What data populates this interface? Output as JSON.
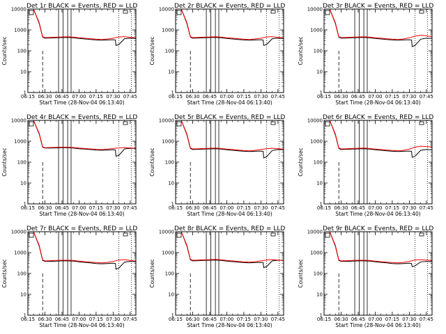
{
  "chart_data": {
    "type": "line",
    "layout": "3x3 grid",
    "x_ticks": [
      "06:15",
      "06:30",
      "06:45",
      "07:00",
      "07:15",
      "07:30",
      "07:45"
    ],
    "x_tick_minutes": [
      15,
      30,
      45,
      60,
      75,
      90,
      105
    ],
    "xlim_minutes": [
      15,
      110
    ],
    "yscale": "log",
    "ylim": [
      1,
      10000
    ],
    "y_ticks": [
      "1",
      "10",
      "100",
      "1000",
      "10000"
    ],
    "y_tick_values": [
      1,
      10,
      100,
      1000,
      10000
    ],
    "ylabel": "Counts/sec",
    "xlabel": "Start Time (28-Nov-04 06:13:40)",
    "series_colors": {
      "events": "#000000",
      "lld": "#ff0000"
    },
    "dashed_marker_minutes": [
      28
    ],
    "solid_markers_minutes": [
      42,
      46,
      50,
      53
    ],
    "dotted_markers_minutes": [
      95,
      106
    ],
    "panels": [
      {
        "title": "Det 1r BLACK = Events, RED = LLD",
        "events": {
          "x": [
            15,
            20,
            25,
            28,
            30,
            35,
            40,
            45,
            50,
            55,
            60,
            65,
            70,
            75,
            80,
            85,
            90,
            92,
            92.5,
            95,
            100,
            105,
            110
          ],
          "y": [
            10000,
            10000,
            2000,
            450,
            400,
            410,
            420,
            430,
            440,
            420,
            390,
            370,
            350,
            330,
            320,
            330,
            340,
            330,
            180,
            200,
            380,
            400,
            390
          ]
        },
        "lld": {
          "x": [
            15,
            20,
            25,
            28,
            30,
            35,
            40,
            45,
            50,
            55,
            60,
            65,
            70,
            75,
            80,
            85,
            90,
            95,
            100,
            105,
            110
          ],
          "y": [
            10000,
            10000,
            2200,
            480,
            430,
            440,
            450,
            460,
            470,
            450,
            420,
            400,
            380,
            360,
            350,
            370,
            400,
            460,
            480,
            440,
            420
          ]
        }
      },
      {
        "title": "Det 2r BLACK = Events, RED = LLD",
        "events": {
          "x": [
            15,
            20,
            25,
            28,
            30,
            35,
            40,
            45,
            50,
            55,
            60,
            65,
            70,
            75,
            80,
            85,
            90,
            92,
            92.5,
            95,
            100,
            105,
            110
          ],
          "y": [
            10000,
            10000,
            2000,
            450,
            400,
            410,
            420,
            430,
            440,
            420,
            390,
            370,
            350,
            330,
            320,
            330,
            340,
            330,
            180,
            200,
            380,
            400,
            390
          ]
        },
        "lld": {
          "x": [
            15,
            20,
            25,
            28,
            30,
            35,
            40,
            45,
            50,
            55,
            60,
            65,
            70,
            75,
            80,
            85,
            90,
            95,
            100,
            105,
            110
          ],
          "y": [
            10000,
            10000,
            2200,
            480,
            430,
            440,
            450,
            460,
            470,
            450,
            420,
            400,
            380,
            360,
            350,
            370,
            400,
            460,
            480,
            440,
            420
          ]
        }
      },
      {
        "title": "Det 3r BLACK = Events, RED = LLD",
        "events": {
          "x": [
            15,
            20,
            25,
            28,
            30,
            35,
            40,
            45,
            50,
            55,
            60,
            65,
            70,
            75,
            80,
            85,
            90,
            92,
            92.5,
            95,
            100,
            105,
            110
          ],
          "y": [
            10000,
            10000,
            2000,
            450,
            400,
            410,
            420,
            430,
            440,
            420,
            390,
            370,
            350,
            330,
            320,
            330,
            340,
            330,
            160,
            180,
            360,
            400,
            390
          ]
        },
        "lld": {
          "x": [
            15,
            20,
            25,
            28,
            30,
            35,
            40,
            45,
            50,
            55,
            60,
            65,
            70,
            75,
            80,
            85,
            90,
            95,
            100,
            105,
            110
          ],
          "y": [
            10000,
            10000,
            2200,
            480,
            430,
            440,
            450,
            460,
            470,
            450,
            420,
            400,
            380,
            360,
            350,
            370,
            420,
            500,
            560,
            520,
            470
          ]
        }
      },
      {
        "title": "Det 4r BLACK = Events, RED = LLD",
        "events": {
          "x": [
            15,
            20,
            25,
            28,
            30,
            35,
            40,
            45,
            50,
            55,
            60,
            65,
            70,
            75,
            80,
            85,
            90,
            92,
            92.5,
            95,
            100,
            105,
            110
          ],
          "y": [
            10000,
            10000,
            2200,
            520,
            470,
            470,
            480,
            490,
            490,
            470,
            440,
            420,
            400,
            380,
            370,
            380,
            390,
            380,
            190,
            210,
            430,
            460,
            450
          ]
        },
        "lld": {
          "x": [
            15,
            20,
            25,
            28,
            30,
            35,
            40,
            45,
            50,
            55,
            60,
            65,
            70,
            75,
            80,
            85,
            90,
            95,
            100,
            105,
            110
          ],
          "y": [
            10000,
            10000,
            2400,
            550,
            490,
            500,
            510,
            520,
            520,
            500,
            470,
            450,
            430,
            410,
            400,
            420,
            450,
            480,
            500,
            480,
            460
          ]
        }
      },
      {
        "title": "Det 5r BLACK = Events, RED = LLD",
        "events": {
          "x": [
            15,
            20,
            25,
            28,
            30,
            35,
            40,
            45,
            50,
            55,
            60,
            65,
            70,
            75,
            80,
            85,
            90,
            92,
            92.5,
            95,
            100,
            105,
            110
          ],
          "y": [
            10000,
            10000,
            2000,
            450,
            400,
            410,
            420,
            430,
            440,
            420,
            390,
            370,
            350,
            330,
            320,
            330,
            340,
            330,
            160,
            180,
            360,
            400,
            390
          ]
        },
        "lld": {
          "x": [
            15,
            20,
            25,
            28,
            30,
            35,
            40,
            45,
            50,
            55,
            60,
            65,
            70,
            75,
            80,
            85,
            90,
            95,
            100,
            105,
            110
          ],
          "y": [
            10000,
            10000,
            2200,
            480,
            430,
            440,
            450,
            460,
            470,
            450,
            420,
            400,
            380,
            360,
            350,
            370,
            400,
            440,
            460,
            440,
            420
          ]
        }
      },
      {
        "title": "Det 6r BLACK = Events, RED = LLD",
        "events": {
          "x": [
            15,
            20,
            25,
            28,
            30,
            35,
            40,
            45,
            50,
            55,
            60,
            65,
            70,
            75,
            80,
            85,
            90,
            92,
            92.5,
            95,
            100,
            105,
            110
          ],
          "y": [
            10000,
            10000,
            2000,
            450,
            400,
            410,
            420,
            430,
            440,
            420,
            390,
            370,
            350,
            330,
            320,
            330,
            340,
            330,
            170,
            190,
            370,
            400,
            390
          ]
        },
        "lld": {
          "x": [
            15,
            20,
            25,
            28,
            30,
            35,
            40,
            45,
            50,
            55,
            60,
            65,
            70,
            75,
            80,
            85,
            90,
            95,
            100,
            105,
            110
          ],
          "y": [
            10000,
            10000,
            2200,
            480,
            430,
            440,
            450,
            460,
            470,
            450,
            420,
            400,
            380,
            360,
            350,
            370,
            420,
            520,
            580,
            560,
            530
          ]
        }
      },
      {
        "title": "Det 7r BLACK = Events, RED = LLD",
        "events": {
          "x": [
            15,
            20,
            25,
            28,
            30,
            35,
            40,
            45,
            50,
            55,
            60,
            65,
            70,
            75,
            80,
            85,
            90,
            92,
            92.5,
            95,
            100,
            105,
            110
          ],
          "y": [
            10000,
            10000,
            2000,
            420,
            380,
            380,
            390,
            400,
            400,
            390,
            360,
            340,
            320,
            300,
            290,
            300,
            310,
            300,
            160,
            180,
            350,
            380,
            370
          ]
        },
        "lld": {
          "x": [
            15,
            20,
            25,
            28,
            30,
            35,
            40,
            45,
            50,
            55,
            60,
            65,
            70,
            75,
            80,
            85,
            90,
            95,
            100,
            105,
            110
          ],
          "y": [
            10000,
            10000,
            2200,
            450,
            400,
            410,
            420,
            430,
            430,
            420,
            390,
            370,
            350,
            330,
            320,
            340,
            380,
            440,
            460,
            420,
            390
          ]
        }
      },
      {
        "title": "Det 8r BLACK = Events, RED = LLD",
        "events": {
          "x": [
            15,
            20,
            25,
            28,
            30,
            35,
            40,
            45,
            50,
            55,
            60,
            65,
            70,
            75,
            80,
            85,
            90,
            92,
            92.5,
            95,
            100,
            105,
            110
          ],
          "y": [
            10000,
            10000,
            2000,
            450,
            400,
            410,
            420,
            430,
            440,
            420,
            390,
            370,
            350,
            330,
            320,
            330,
            340,
            330,
            190,
            210,
            400,
            430,
            420
          ]
        },
        "lld": {
          "x": [
            15,
            20,
            25,
            28,
            30,
            35,
            40,
            45,
            50,
            55,
            60,
            65,
            70,
            75,
            80,
            85,
            90,
            95,
            100,
            105,
            110
          ],
          "y": [
            10000,
            10000,
            2200,
            480,
            430,
            440,
            450,
            460,
            470,
            450,
            420,
            400,
            380,
            360,
            350,
            370,
            400,
            440,
            460,
            440,
            420
          ]
        }
      },
      {
        "title": "Det 9r BLACK = Events, RED = LLD",
        "events": {
          "x": [
            15,
            20,
            25,
            28,
            30,
            35,
            40,
            45,
            50,
            55,
            60,
            65,
            70,
            75,
            80,
            85,
            90,
            92,
            92.5,
            95,
            100,
            105,
            110
          ],
          "y": [
            10000,
            10000,
            2000,
            420,
            380,
            380,
            390,
            400,
            400,
            390,
            360,
            340,
            320,
            300,
            290,
            300,
            310,
            300,
            210,
            230,
            360,
            380,
            370
          ]
        },
        "lld": {
          "x": [
            15,
            20,
            25,
            28,
            30,
            35,
            40,
            45,
            50,
            55,
            60,
            65,
            70,
            75,
            80,
            85,
            90,
            95,
            100,
            105,
            110
          ],
          "y": [
            10000,
            10000,
            2200,
            450,
            400,
            410,
            420,
            430,
            430,
            420,
            390,
            370,
            350,
            330,
            320,
            340,
            380,
            440,
            460,
            440,
            420
          ]
        }
      }
    ]
  }
}
